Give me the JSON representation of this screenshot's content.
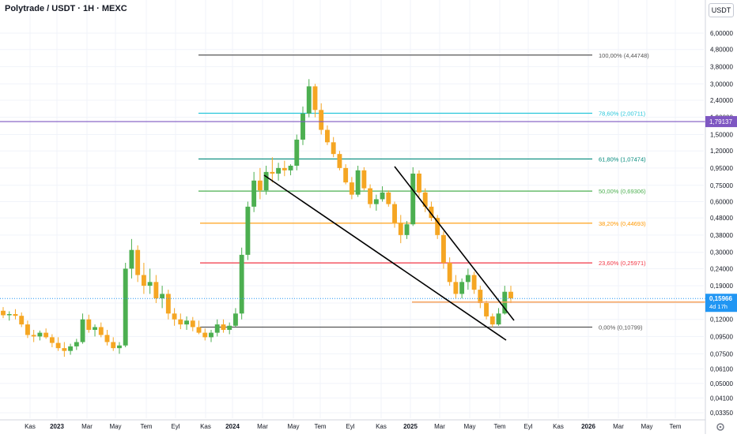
{
  "header": {
    "title": "Polytrade / USDT · 1H · MEXC",
    "currency_button": "USDT"
  },
  "colors": {
    "up": "#4caf50",
    "down": "#f5a623",
    "fib_100": "#555555",
    "fib_786": "#26c6da",
    "fib_618": "#00897b",
    "fib_50": "#4caf50",
    "fib_382": "#ff9800",
    "fib_236": "#f23645",
    "fib_0": "#555555",
    "purple_line": "#7e57c2",
    "last_price": "#2196f3",
    "support_line": "#f7a35c",
    "trendline": "#000000"
  },
  "chart_data": {
    "type": "candlestick",
    "title": "Polytrade / USDT · 1H · MEXC",
    "y_scale": "log",
    "ylim": [
      0.03,
      7.5
    ],
    "y_ticks": [
      "6,00000",
      "4,80000",
      "3,80000",
      "3,00000",
      "2,40000",
      "1,90000",
      "1,50000",
      "1,20000",
      "0,95000",
      "0,75000",
      "0,60000",
      "0,48000",
      "0,38000",
      "0,30000",
      "0,24000",
      "0,19000",
      "0,15000",
      "0,12000",
      "0,09500",
      "0,07500",
      "0,06100",
      "0,05000",
      "0,04100",
      "0,03350"
    ],
    "x_ticks": [
      "Kas",
      "2023",
      "Mar",
      "May",
      "Tem",
      "Eyl",
      "Kas",
      "2024",
      "Mar",
      "May",
      "Tem",
      "Eyl",
      "Kas",
      "2025",
      "Mar",
      "May",
      "Tem",
      "Eyl",
      "Kas",
      "2026",
      "Mar",
      "May",
      "Tem"
    ],
    "fib_levels": [
      {
        "ratio": "100,00%",
        "value": 4.44748,
        "label": "100,00% (4,44748)"
      },
      {
        "ratio": "78,60%",
        "value": 2.00711,
        "label": "78,60% (2,00711)"
      },
      {
        "ratio": "61,80%",
        "value": 1.07474,
        "label": "61,80% (1,07474)"
      },
      {
        "ratio": "50,00%",
        "value": 0.69306,
        "label": "50,00% (0,69306)"
      },
      {
        "ratio": "38,20%",
        "value": 0.44693,
        "label": "38,20% (0,44693)"
      },
      {
        "ratio": "23,60%",
        "value": 0.25971,
        "label": "23,60% (0,25971)"
      },
      {
        "ratio": "0,00%",
        "value": 0.10799,
        "label": "0,00% (0,10799)"
      }
    ],
    "horizontal_line": {
      "value": 1.79137,
      "label": "1,79137"
    },
    "last_price": {
      "value": 0.15966,
      "label": "0,15966",
      "countdown": "4d 17h"
    },
    "support_level": 0.152,
    "candles": [
      [
        0.135,
        0.142,
        0.122,
        0.127
      ],
      [
        0.127,
        0.134,
        0.118,
        0.129
      ],
      [
        0.129,
        0.138,
        0.12,
        0.126
      ],
      [
        0.126,
        0.132,
        0.108,
        0.112
      ],
      [
        0.112,
        0.118,
        0.093,
        0.097
      ],
      [
        0.097,
        0.104,
        0.088,
        0.095
      ],
      [
        0.095,
        0.103,
        0.09,
        0.1
      ],
      [
        0.1,
        0.106,
        0.092,
        0.094
      ],
      [
        0.094,
        0.098,
        0.082,
        0.087
      ],
      [
        0.087,
        0.094,
        0.078,
        0.081
      ],
      [
        0.081,
        0.088,
        0.072,
        0.078
      ],
      [
        0.078,
        0.086,
        0.074,
        0.083
      ],
      [
        0.083,
        0.092,
        0.079,
        0.088
      ],
      [
        0.088,
        0.13,
        0.086,
        0.12
      ],
      [
        0.12,
        0.128,
        0.1,
        0.104
      ],
      [
        0.104,
        0.112,
        0.095,
        0.108
      ],
      [
        0.108,
        0.115,
        0.094,
        0.097
      ],
      [
        0.097,
        0.104,
        0.084,
        0.088
      ],
      [
        0.088,
        0.094,
        0.078,
        0.081
      ],
      [
        0.081,
        0.088,
        0.075,
        0.084
      ],
      [
        0.084,
        0.26,
        0.082,
        0.24
      ],
      [
        0.24,
        0.36,
        0.21,
        0.31
      ],
      [
        0.31,
        0.33,
        0.2,
        0.22
      ],
      [
        0.22,
        0.26,
        0.17,
        0.19
      ],
      [
        0.19,
        0.24,
        0.17,
        0.2
      ],
      [
        0.2,
        0.22,
        0.15,
        0.16
      ],
      [
        0.16,
        0.19,
        0.14,
        0.17
      ],
      [
        0.17,
        0.18,
        0.12,
        0.13
      ],
      [
        0.13,
        0.14,
        0.11,
        0.12
      ],
      [
        0.12,
        0.13,
        0.105,
        0.112
      ],
      [
        0.112,
        0.125,
        0.104,
        0.118
      ],
      [
        0.118,
        0.124,
        0.102,
        0.108
      ],
      [
        0.108,
        0.118,
        0.098,
        0.1
      ],
      [
        0.1,
        0.106,
        0.09,
        0.094
      ],
      [
        0.094,
        0.104,
        0.088,
        0.1
      ],
      [
        0.1,
        0.12,
        0.095,
        0.112
      ],
      [
        0.112,
        0.12,
        0.1,
        0.104
      ],
      [
        0.104,
        0.115,
        0.098,
        0.11
      ],
      [
        0.11,
        0.14,
        0.108,
        0.13
      ],
      [
        0.13,
        0.32,
        0.12,
        0.29
      ],
      [
        0.29,
        0.6,
        0.27,
        0.56
      ],
      [
        0.56,
        0.9,
        0.52,
        0.8
      ],
      [
        0.8,
        0.95,
        0.62,
        0.7
      ],
      [
        0.7,
        0.98,
        0.66,
        0.9
      ],
      [
        0.9,
        1.1,
        0.78,
        0.88
      ],
      [
        0.88,
        1.02,
        0.8,
        0.95
      ],
      [
        0.95,
        1.05,
        0.85,
        0.92
      ],
      [
        0.92,
        1.0,
        0.86,
        0.98
      ],
      [
        0.98,
        1.5,
        0.92,
        1.4
      ],
      [
        1.4,
        2.2,
        1.3,
        2.0
      ],
      [
        2.0,
        3.2,
        1.9,
        2.9
      ],
      [
        2.9,
        3.0,
        1.9,
        2.1
      ],
      [
        2.1,
        2.3,
        1.5,
        1.6
      ],
      [
        1.6,
        1.7,
        1.3,
        1.35
      ],
      [
        1.35,
        1.45,
        1.1,
        1.15
      ],
      [
        1.15,
        1.2,
        0.92,
        0.95
      ],
      [
        0.95,
        1.0,
        0.76,
        0.78
      ],
      [
        0.78,
        0.84,
        0.62,
        0.66
      ],
      [
        0.66,
        0.98,
        0.64,
        0.92
      ],
      [
        0.92,
        0.96,
        0.7,
        0.72
      ],
      [
        0.72,
        0.76,
        0.55,
        0.58
      ],
      [
        0.58,
        0.66,
        0.53,
        0.62
      ],
      [
        0.62,
        0.74,
        0.6,
        0.68
      ],
      [
        0.68,
        0.7,
        0.56,
        0.58
      ],
      [
        0.58,
        0.6,
        0.42,
        0.45
      ],
      [
        0.45,
        0.5,
        0.34,
        0.38
      ],
      [
        0.38,
        0.46,
        0.36,
        0.44
      ],
      [
        0.44,
        0.96,
        0.43,
        0.88
      ],
      [
        0.88,
        0.92,
        0.64,
        0.68
      ],
      [
        0.68,
        0.72,
        0.52,
        0.56
      ],
      [
        0.56,
        0.6,
        0.46,
        0.48
      ],
      [
        0.48,
        0.5,
        0.36,
        0.38
      ],
      [
        0.38,
        0.4,
        0.24,
        0.26
      ],
      [
        0.26,
        0.28,
        0.19,
        0.2
      ],
      [
        0.2,
        0.22,
        0.16,
        0.17
      ],
      [
        0.17,
        0.21,
        0.16,
        0.2
      ],
      [
        0.2,
        0.24,
        0.18,
        0.22
      ],
      [
        0.22,
        0.23,
        0.17,
        0.18
      ],
      [
        0.18,
        0.19,
        0.14,
        0.15
      ],
      [
        0.15,
        0.155,
        0.12,
        0.125
      ],
      [
        0.125,
        0.13,
        0.108,
        0.112
      ],
      [
        0.112,
        0.14,
        0.11,
        0.13
      ],
      [
        0.13,
        0.19,
        0.128,
        0.175
      ],
      [
        0.175,
        0.19,
        0.15,
        0.16
      ]
    ]
  },
  "x_axis_settings_icon": "gear-icon"
}
